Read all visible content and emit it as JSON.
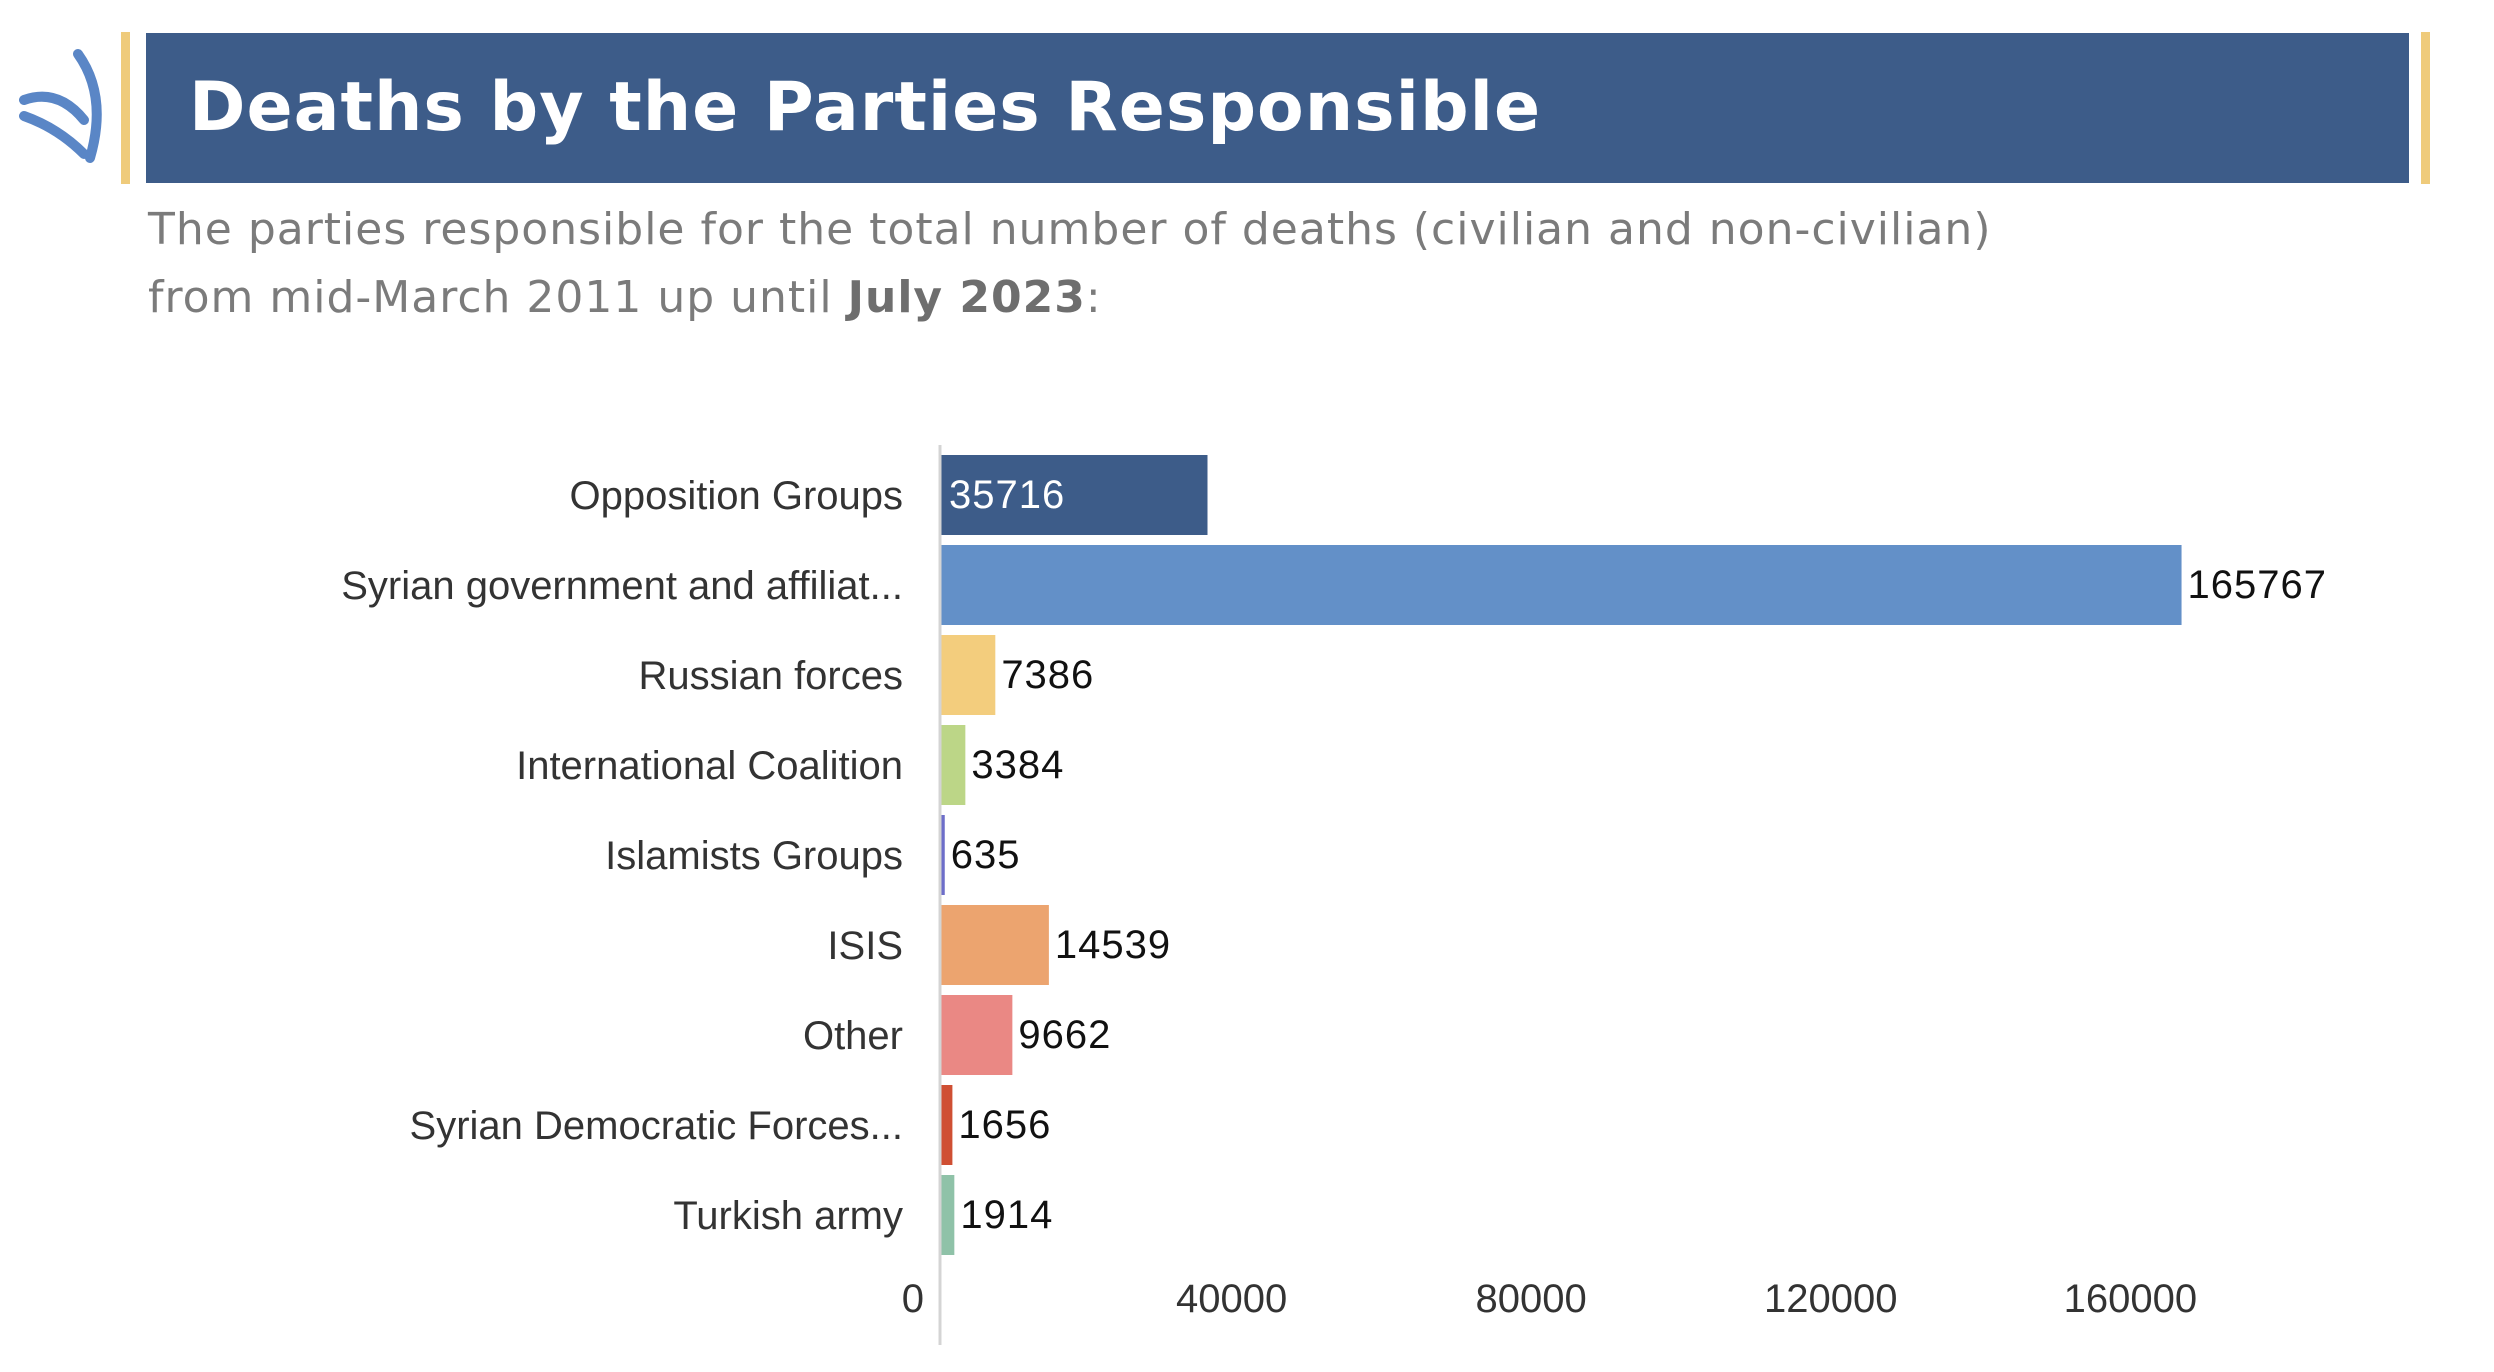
{
  "header": {
    "title": "Deaths by the Parties Responsible"
  },
  "subtitle": {
    "line1": "The parties responsible for the total number of deaths (civilian and non-civilian)",
    "line2_prefix": "from mid-March 2011 up until ",
    "line2_bold": "July 2023",
    "line2_suffix": ":"
  },
  "colors": {
    "header_band": "#3d5c89",
    "accent_gold": "#efcb7b",
    "logo_blue": "#5a86c6"
  },
  "icons": {
    "logo": "snhr-logo-icon"
  },
  "chart_data": {
    "type": "bar",
    "orientation": "horizontal",
    "categories": [
      "Opposition Groups",
      "Syrian government and affiliat...",
      "Russian forces",
      "International Coalition",
      "Islamists Groups",
      "ISIS",
      "Other",
      "Syrian Democratic Forces...",
      "Turkish army"
    ],
    "values": [
      35716,
      165767,
      7386,
      3384,
      635,
      14539,
      9662,
      1656,
      1914
    ],
    "colors": [
      "#3d5c89",
      "#6390c8",
      "#f3cd7d",
      "#bcd687",
      "#6d6ec9",
      "#eca46f",
      "#ea8884",
      "#cf4f33",
      "#8fc2a8"
    ],
    "xlim": [
      0,
      180000
    ],
    "xticks": [
      0,
      40000,
      80000,
      120000,
      160000
    ],
    "xtick_labels": [
      "0",
      "40000",
      "80000",
      "120000",
      "160000"
    ],
    "grid": false,
    "legend": "none",
    "data_labels": true
  }
}
